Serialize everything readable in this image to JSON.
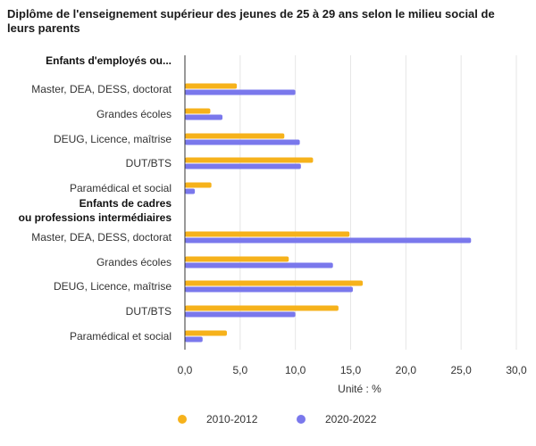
{
  "chart_data": {
    "type": "bar",
    "orientation": "horizontal",
    "title": "Diplôme de l'enseignement supérieur des jeunes de 25 à 29 ans selon le milieu social de leurs parents",
    "xlabel": "Unité : %",
    "xlim": [
      0,
      30
    ],
    "xticks": [
      0,
      5,
      10,
      15,
      20,
      25,
      30
    ],
    "xtick_labels": [
      "0,0",
      "5,0",
      "10,0",
      "15,0",
      "20,0",
      "25,0",
      "30,0"
    ],
    "grid": true,
    "legend_position": "bottom",
    "groups": [
      {
        "label": "Enfants d'employés ou...",
        "categories": [
          "Master, DEA, DESS, doctorat",
          "Grandes écoles",
          "DEUG, Licence, maîtrise",
          "DUT/BTS",
          "Paramédical et social"
        ]
      },
      {
        "label": "Enfants de cadres\nou professions intermédiaires",
        "categories": [
          "Master, DEA, DESS, doctorat",
          "Grandes écoles",
          "DEUG, Licence, maîtrise",
          "DUT/BTS",
          "Paramédical et social"
        ]
      }
    ],
    "series": [
      {
        "name": "2010-2012",
        "color": "#f6b21b",
        "values": [
          [
            4.7,
            2.3,
            9.0,
            11.6,
            2.4
          ],
          [
            14.9,
            9.4,
            16.1,
            13.9,
            3.8
          ]
        ]
      },
      {
        "name": "2020-2022",
        "color": "#7a78ec",
        "values": [
          [
            10.0,
            3.4,
            10.4,
            10.5,
            0.9
          ],
          [
            25.9,
            13.4,
            15.2,
            10.0,
            1.6
          ]
        ]
      }
    ]
  }
}
